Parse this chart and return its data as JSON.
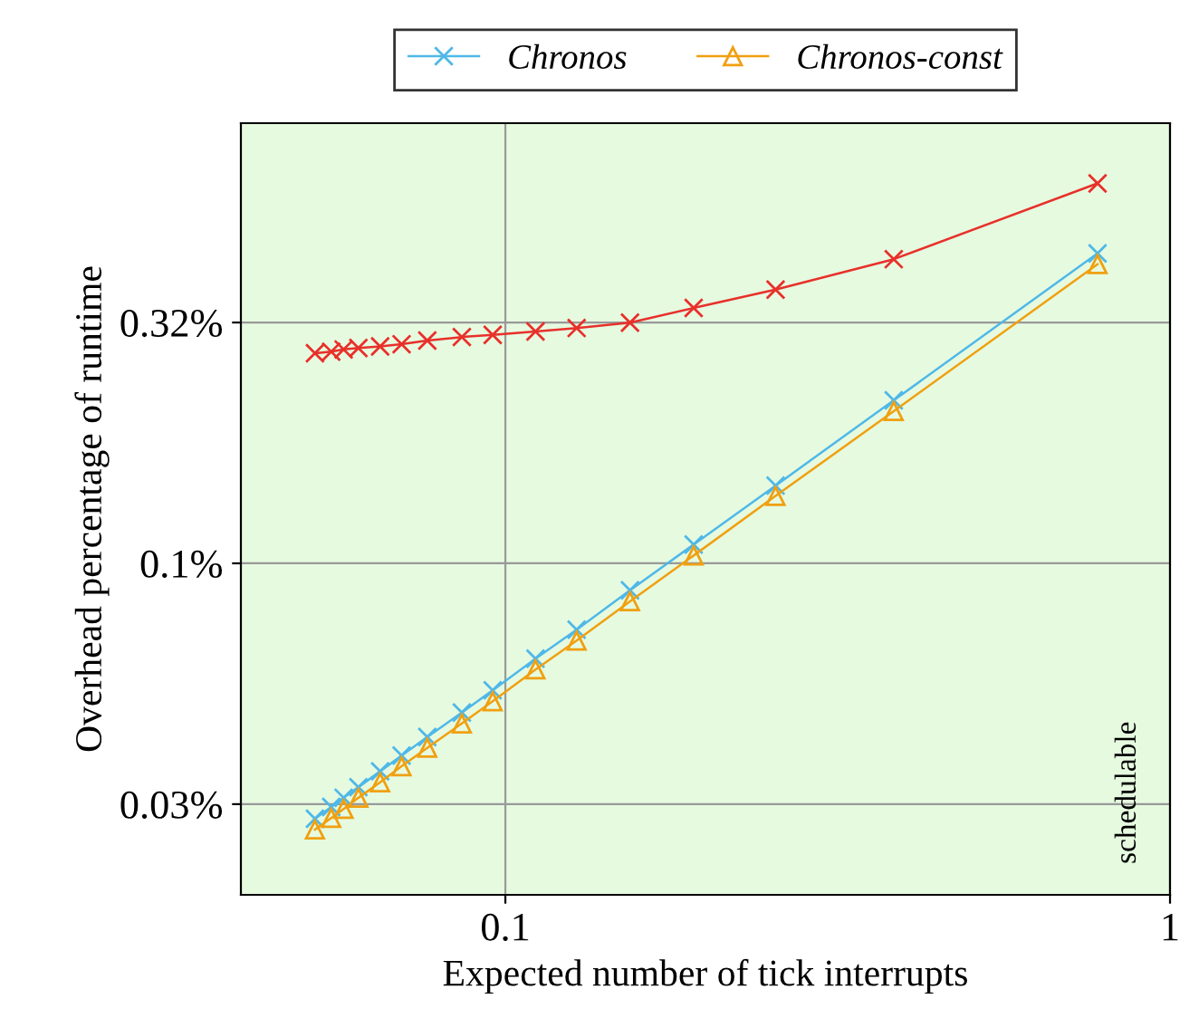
{
  "chart_data": {
    "type": "line",
    "xlabel": "Expected number of tick interrupts",
    "ylabel": "Overhead percentage of runtime",
    "log": "xy",
    "xlim": [
      0.04,
      1
    ],
    "ylim": [
      0.0205,
      0.82
    ],
    "xticks": [
      0.1,
      1
    ],
    "yticks": [
      {
        "value": 0.3162,
        "label": "0.32%"
      },
      {
        "value": 0.1,
        "label": "0.1%"
      },
      {
        "value": 0.03162,
        "label": "0.03%"
      }
    ],
    "grid": true,
    "legend": "top",
    "line_style": "solid",
    "x": [
      0.0517,
      0.0547,
      0.0571,
      0.0601,
      0.0648,
      0.0698,
      0.0763,
      0.086,
      0.0957,
      0.111,
      0.128,
      0.154,
      0.192,
      0.255,
      0.384,
      0.778
    ],
    "series": [
      {
        "color": "#e8302a",
        "marker": "cross",
        "values": [
          0.273,
          0.275,
          0.278,
          0.28,
          0.282,
          0.285,
          0.29,
          0.295,
          0.298,
          0.303,
          0.308,
          0.316,
          0.339,
          0.37,
          0.428,
          0.615
        ]
      },
      {
        "name": "Chronos",
        "color": "#4fb8e8",
        "marker": "cross",
        "values": [
          0.0295,
          0.0312,
          0.0326,
          0.0343,
          0.037,
          0.0399,
          0.0436,
          0.049,
          0.0545,
          0.0634,
          0.0728,
          0.0879,
          0.1094,
          0.145,
          0.218,
          0.44
        ]
      },
      {
        "name": "Chronos-const",
        "color": "#f0a010",
        "marker": "triangle",
        "values": [
          0.028,
          0.0296,
          0.0309,
          0.0326,
          0.0351,
          0.0379,
          0.0414,
          0.0465,
          0.0517,
          0.0602,
          0.0691,
          0.0834,
          0.1038,
          0.138,
          0.207,
          0.418
        ]
      }
    ],
    "annotations": [
      "schedulable"
    ]
  }
}
